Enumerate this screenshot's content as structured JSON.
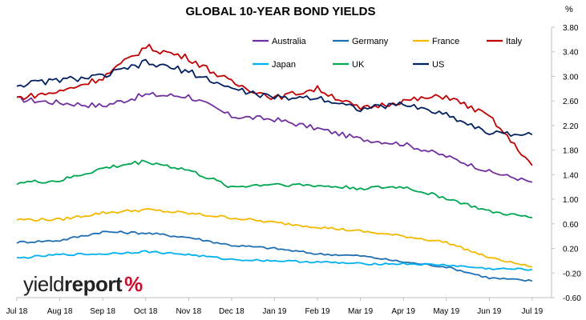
{
  "brand": {
    "text_main": "yield",
    "text_second": "report",
    "text_symbol": "%"
  },
  "chart_data": {
    "type": "line",
    "title": "GLOBAL 10-YEAR BOND YIELDS",
    "unit_label": "%",
    "x": [
      "Jul 18",
      "Aug 18",
      "Sep 18",
      "Oct 18",
      "Nov 18",
      "Dec 18",
      "Jan 19",
      "Feb 19",
      "Mar 19",
      "Apr 19",
      "May 19",
      "Jun 19",
      "Jul 19"
    ],
    "x_tick_labels": [
      "Jul 18",
      "Aug 18",
      "Sep 18",
      "Oct 18",
      "Nov 18",
      "Dec 18",
      "Jan 19",
      "Feb 19",
      "Mar 19",
      "Apr 19",
      "May 19",
      "Jun 19",
      "Jul 19"
    ],
    "y_tick_labels": [
      "3.80",
      "3.40",
      "3.00",
      "2.60",
      "2.20",
      "1.80",
      "1.40",
      "1.00",
      "0.60",
      "0.20",
      "-0.20",
      "-0.60"
    ],
    "ylim": [
      -0.6,
      3.8
    ],
    "grid": false,
    "legend_placement": "top-right",
    "series": [
      {
        "name": "Australia",
        "color": "#7030a0",
        "values": [
          2.63,
          2.57,
          2.52,
          2.7,
          2.68,
          2.35,
          2.3,
          2.15,
          1.98,
          1.9,
          1.7,
          1.45,
          1.28
        ]
      },
      {
        "name": "Germany",
        "color": "#1f6fb4",
        "values": [
          0.3,
          0.33,
          0.47,
          0.45,
          0.38,
          0.25,
          0.2,
          0.11,
          0.08,
          -0.02,
          -0.1,
          -0.28,
          -0.33
        ]
      },
      {
        "name": "France",
        "color": "#f5b800",
        "values": [
          0.67,
          0.67,
          0.78,
          0.83,
          0.77,
          0.7,
          0.62,
          0.55,
          0.48,
          0.4,
          0.3,
          0.05,
          -0.1
        ]
      },
      {
        "name": "Italy",
        "color": "#c00000",
        "values": [
          2.65,
          2.75,
          2.98,
          3.48,
          3.3,
          2.9,
          2.65,
          2.8,
          2.47,
          2.6,
          2.68,
          2.35,
          1.55
        ]
      },
      {
        "name": "Japan",
        "color": "#00b0f0",
        "values": [
          0.04,
          0.1,
          0.11,
          0.15,
          0.1,
          0.02,
          0.0,
          -0.02,
          -0.05,
          -0.05,
          -0.07,
          -0.13,
          -0.14
        ]
      },
      {
        "name": "UK",
        "color": "#00a650",
        "values": [
          1.27,
          1.3,
          1.5,
          1.62,
          1.47,
          1.2,
          1.25,
          1.22,
          1.18,
          1.2,
          1.02,
          0.8,
          0.7
        ]
      },
      {
        "name": "US",
        "color": "#002060",
        "values": [
          2.86,
          2.94,
          3.0,
          3.22,
          3.08,
          2.8,
          2.65,
          2.66,
          2.47,
          2.55,
          2.38,
          2.08,
          2.05
        ]
      }
    ]
  }
}
